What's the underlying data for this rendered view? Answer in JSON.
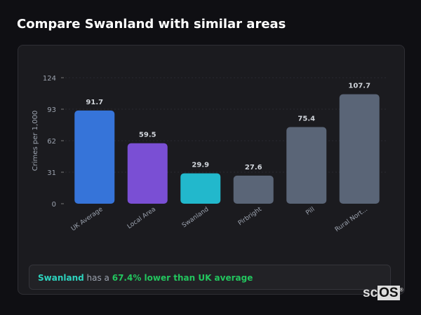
{
  "title": "Compare Swanland with similar areas",
  "chart_data": {
    "type": "bar",
    "categories": [
      "UK Average",
      "Local Area",
      "Swanland",
      "Pirbright",
      "Pill",
      "Rural Nort..."
    ],
    "values": [
      91.7,
      59.5,
      29.9,
      27.6,
      75.4,
      107.7
    ],
    "colors": [
      "#3674d9",
      "#7a4fd4",
      "#22b8cc",
      "#5a6577",
      "#5a6577",
      "#5a6577"
    ],
    "ylabel": "Crimes per 1,000",
    "xlabel": "",
    "ylim": [
      0,
      124
    ],
    "yticks": [
      0,
      31,
      62,
      93,
      124
    ],
    "grid": true,
    "data_labels": true
  },
  "summary": {
    "area": "Swanland",
    "text": " has a ",
    "diff": "67.4% lower than UK average"
  },
  "logo": {
    "text_plain": "sc",
    "text_box": "OS",
    "mark": "®"
  }
}
